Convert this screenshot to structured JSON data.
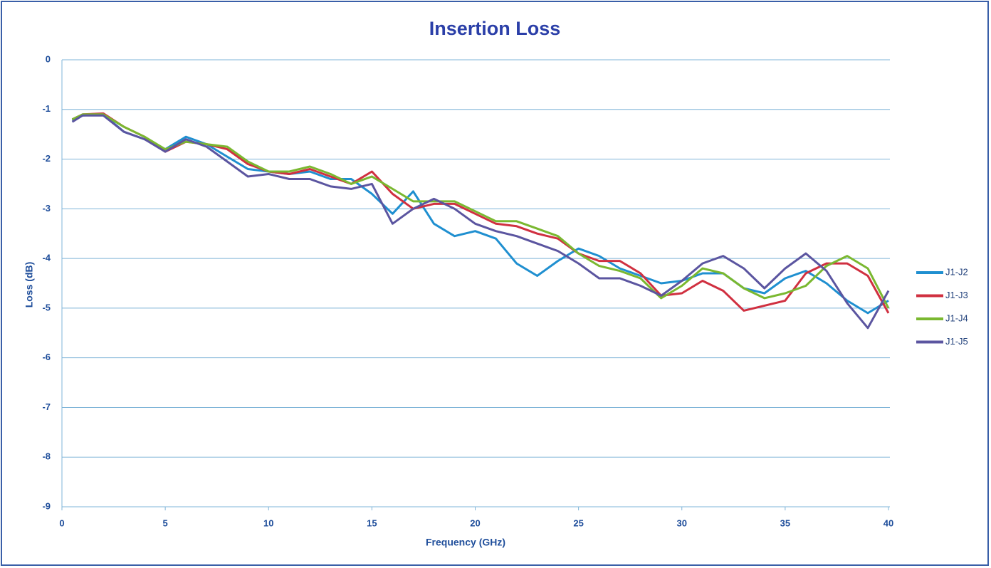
{
  "chart_data": {
    "type": "line",
    "title": "Insertion Loss",
    "x_label": "Frequency (GHz)",
    "y_label": "Loss (dB)",
    "x": [
      0.5,
      1,
      2,
      3,
      4,
      5,
      6,
      7,
      8,
      9,
      10,
      11,
      12,
      13,
      14,
      15,
      16,
      17,
      18,
      19,
      20,
      21,
      22,
      23,
      24,
      25,
      26,
      27,
      28,
      29,
      30,
      31,
      32,
      33,
      34,
      35,
      36,
      37,
      38,
      39,
      40
    ],
    "series": [
      {
        "name": "J1-J2",
        "color": "#1f8fd0",
        "values": [
          -1.22,
          -1.12,
          -1.1,
          -1.45,
          -1.6,
          -1.8,
          -1.55,
          -1.7,
          -1.95,
          -2.2,
          -2.25,
          -2.3,
          -2.25,
          -2.4,
          -2.4,
          -2.7,
          -3.1,
          -2.65,
          -3.3,
          -3.55,
          -3.45,
          -3.6,
          -4.1,
          -4.35,
          -4.05,
          -3.8,
          -3.95,
          -4.2,
          -4.35,
          -4.5,
          -4.45,
          -4.3,
          -4.3,
          -4.6,
          -4.7,
          -4.4,
          -4.25,
          -4.5,
          -4.85,
          -5.1,
          -4.85
        ]
      },
      {
        "name": "J1-J3",
        "color": "#d03040",
        "values": [
          -1.2,
          -1.1,
          -1.08,
          -1.35,
          -1.55,
          -1.85,
          -1.65,
          -1.7,
          -1.8,
          -2.1,
          -2.25,
          -2.3,
          -2.2,
          -2.35,
          -2.5,
          -2.25,
          -2.7,
          -3.0,
          -2.9,
          -2.9,
          -3.1,
          -3.3,
          -3.35,
          -3.5,
          -3.6,
          -3.9,
          -4.05,
          -4.05,
          -4.3,
          -4.75,
          -4.7,
          -4.45,
          -4.65,
          -5.05,
          -4.95,
          -4.85,
          -4.3,
          -4.1,
          -4.1,
          -4.35,
          -5.1
        ]
      },
      {
        "name": "J1-J4",
        "color": "#7ab830",
        "values": [
          -1.2,
          -1.1,
          -1.1,
          -1.35,
          -1.55,
          -1.8,
          -1.65,
          -1.7,
          -1.75,
          -2.05,
          -2.25,
          -2.25,
          -2.15,
          -2.3,
          -2.5,
          -2.35,
          -2.6,
          -2.85,
          -2.85,
          -2.85,
          -3.05,
          -3.25,
          -3.25,
          -3.4,
          -3.55,
          -3.9,
          -4.15,
          -4.25,
          -4.4,
          -4.8,
          -4.55,
          -4.2,
          -4.3,
          -4.6,
          -4.8,
          -4.7,
          -4.55,
          -4.15,
          -3.95,
          -4.2,
          -5.0
        ]
      },
      {
        "name": "J1-J5",
        "color": "#5b55a0",
        "values": [
          -1.25,
          -1.12,
          -1.12,
          -1.45,
          -1.6,
          -1.85,
          -1.6,
          -1.75,
          -2.05,
          -2.35,
          -2.3,
          -2.4,
          -2.4,
          -2.55,
          -2.6,
          -2.5,
          -3.3,
          -3.0,
          -2.8,
          -3.0,
          -3.3,
          -3.45,
          -3.55,
          -3.7,
          -3.85,
          -4.1,
          -4.4,
          -4.4,
          -4.55,
          -4.75,
          -4.45,
          -4.1,
          -3.95,
          -4.2,
          -4.6,
          -4.2,
          -3.9,
          -4.25,
          -4.9,
          -5.4,
          -4.65
        ]
      }
    ],
    "xlim": [
      0,
      40
    ],
    "xticks": [
      0,
      5,
      10,
      15,
      20,
      25,
      30,
      35,
      40
    ],
    "ylim": [
      -9,
      0
    ],
    "yticks": [
      0,
      -1,
      -2,
      -3,
      -4,
      -5,
      -6,
      -7,
      -8,
      -9
    ],
    "grid": true,
    "legend": "right"
  }
}
